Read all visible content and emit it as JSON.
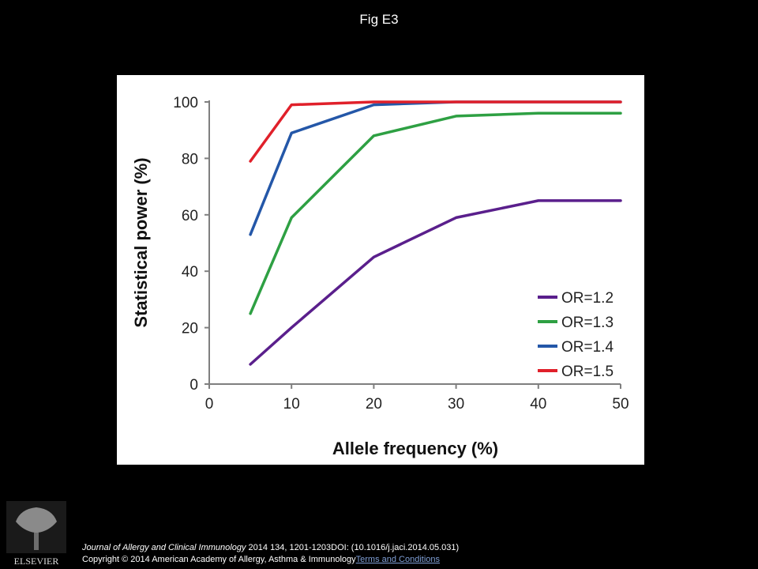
{
  "page": {
    "title": "Fig E3"
  },
  "chart_data": {
    "type": "line",
    "xlabel": "Allele frequency (%)",
    "ylabel": "Statistical power (%)",
    "xlim": [
      0,
      50
    ],
    "ylim": [
      0,
      100
    ],
    "xticks": [
      0,
      10,
      20,
      30,
      40,
      50
    ],
    "yticks": [
      0,
      20,
      40,
      60,
      80,
      100
    ],
    "grid": false,
    "legend_position": "bottom-right",
    "x": [
      5,
      10,
      20,
      30,
      40,
      50
    ],
    "series": [
      {
        "name": "OR=1.2",
        "color": "#5a1f8c",
        "values": [
          7,
          20,
          45,
          59,
          65,
          65
        ]
      },
      {
        "name": "OR=1.3",
        "color": "#2ea043",
        "values": [
          25,
          59,
          88,
          95,
          96,
          96
        ]
      },
      {
        "name": "OR=1.4",
        "color": "#2457a8",
        "values": [
          53,
          89,
          99,
          100,
          100,
          100
        ]
      },
      {
        "name": "OR=1.5",
        "color": "#e0202a",
        "values": [
          79,
          99,
          100,
          100,
          100,
          100
        ]
      }
    ]
  },
  "footer": {
    "journal": "Journal of Allergy and Clinical Immunology",
    "citation": " 2014 134, 1201-1203DOI: (10.1016/j.jaci.2014.05.031)",
    "copyright": "Copyright © 2014 American Academy of Allergy, Asthma & Immunology",
    "link_label": "Terms and Conditions"
  },
  "logo": {
    "text": "ELSEVIER"
  }
}
